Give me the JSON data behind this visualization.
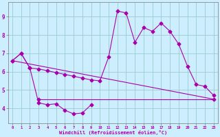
{
  "xlabel": "Windchill (Refroidissement éolien,°C)",
  "background_color": "#cceeff",
  "grid_color": "#99cccc",
  "line_color": "#aa00aa",
  "series1_x": [
    0,
    1,
    2,
    3,
    4,
    5,
    6,
    7,
    8,
    9,
    10,
    11,
    12,
    13,
    14,
    15,
    16,
    17,
    18,
    19,
    20,
    21,
    22,
    23
  ],
  "series1_y": [
    6.6,
    7.0,
    6.2,
    6.15,
    6.05,
    5.95,
    5.85,
    5.75,
    5.65,
    5.55,
    5.5,
    6.8,
    9.3,
    9.2,
    7.6,
    8.4,
    8.2,
    8.65,
    8.2,
    7.5,
    6.3,
    5.3,
    5.2,
    4.7
  ],
  "series2_x": [
    0,
    1,
    2,
    3,
    4,
    5,
    6,
    7,
    8,
    9
  ],
  "series2_y": [
    6.6,
    7.0,
    6.2,
    4.3,
    4.2,
    4.25,
    3.9,
    3.7,
    3.75,
    4.2
  ],
  "series3_x": [
    3,
    23
  ],
  "series3_y": [
    4.5,
    4.5
  ],
  "refline_x": [
    0,
    23
  ],
  "refline_y": [
    6.6,
    4.5
  ],
  "ylim": [
    3.2,
    9.8
  ],
  "xlim": [
    -0.5,
    23.5
  ],
  "yticks": [
    4,
    5,
    6,
    7,
    8,
    9
  ],
  "xticks": [
    0,
    1,
    2,
    3,
    4,
    5,
    6,
    7,
    8,
    9,
    10,
    11,
    12,
    13,
    14,
    15,
    16,
    17,
    18,
    19,
    20,
    21,
    22,
    23
  ]
}
